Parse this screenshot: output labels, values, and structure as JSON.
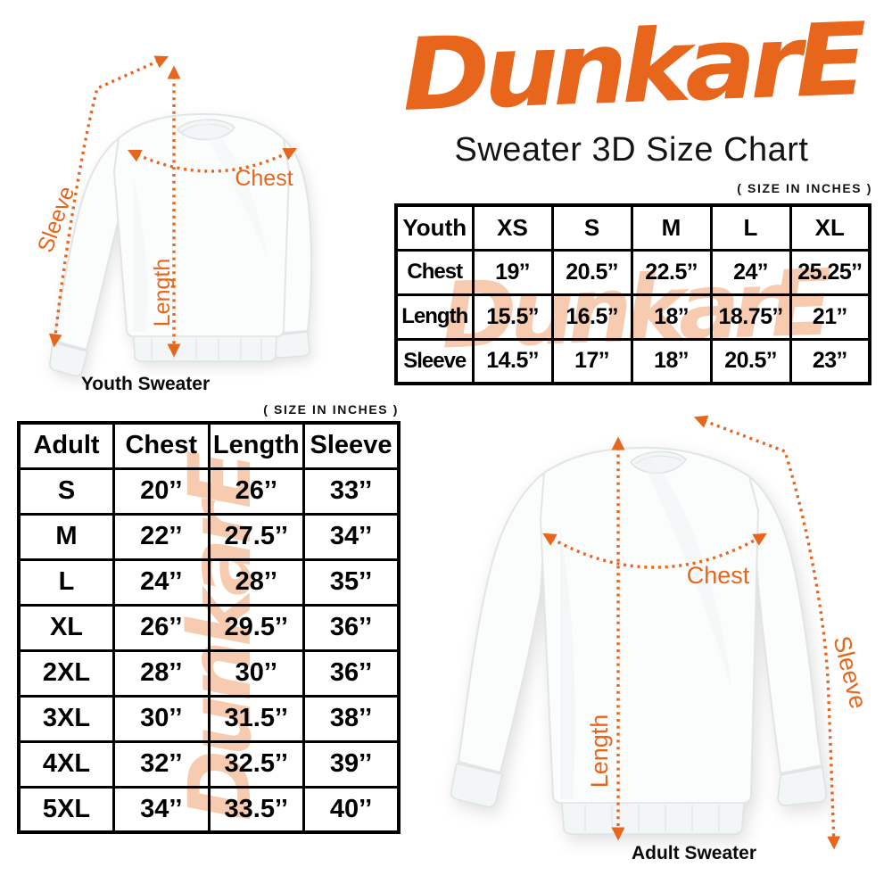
{
  "brand": {
    "logo_text": "DunkarE",
    "logo_color": "#E8661C"
  },
  "title": "Sweater 3D Size Chart",
  "notes": {
    "size_in_inches": "( SIZE IN INCHES )"
  },
  "colors": {
    "accent_orange": "#E8661C",
    "watermark_peach": "#F6CBB0",
    "text_black": "#000000",
    "background": "#FFFFFF"
  },
  "youth_diagram": {
    "caption": "Youth Sweater",
    "chest_label": "Chest",
    "length_label": "Length",
    "sleeve_label": "Sleeve"
  },
  "adult_diagram": {
    "caption": "Adult Sweater",
    "chest_label": "Chest",
    "length_label": "Length",
    "sleeve_label": "Sleeve"
  },
  "youth_table": {
    "columns": [
      "Youth",
      "XS",
      "S",
      "M",
      "L",
      "XL"
    ],
    "rows": [
      [
        "Chest",
        "19’’",
        "20.5’’",
        "22.5’’",
        "24’’",
        "25.25’’"
      ],
      [
        "Length",
        "15.5’’",
        "16.5’’",
        "18’’",
        "18.75’’",
        "21’’"
      ],
      [
        "Sleeve",
        "14.5’’",
        "17’’",
        "18’’",
        "20.5’’",
        "23’’"
      ]
    ]
  },
  "adult_table": {
    "columns": [
      "Adult",
      "Chest",
      "Length",
      "Sleeve"
    ],
    "rows": [
      [
        "S",
        "20’’",
        "26’’",
        "33’’"
      ],
      [
        "M",
        "22’’",
        "27.5’’",
        "34’’"
      ],
      [
        "L",
        "24’’",
        "28’’",
        "35’’"
      ],
      [
        "XL",
        "26’’",
        "29.5’’",
        "36’’"
      ],
      [
        "2XL",
        "28’’",
        "30’’",
        "36’’"
      ],
      [
        "3XL",
        "30’’",
        "31.5’’",
        "38’’"
      ],
      [
        "4XL",
        "32’’",
        "32.5’’",
        "39’’"
      ],
      [
        "5XL",
        "34’’",
        "33.5’’",
        "40’’"
      ]
    ]
  },
  "chart_data": [
    {
      "type": "table",
      "title": "Youth Sweater 3D Size Chart",
      "units": "inches",
      "columns": [
        "Youth",
        "XS",
        "S",
        "M",
        "L",
        "XL"
      ],
      "rows": [
        [
          "Chest",
          19,
          20.5,
          22.5,
          24,
          25.25
        ],
        [
          "Length",
          15.5,
          16.5,
          18,
          18.75,
          21
        ],
        [
          "Sleeve",
          14.5,
          17,
          18,
          20.5,
          23
        ]
      ]
    },
    {
      "type": "table",
      "title": "Adult Sweater 3D Size Chart",
      "units": "inches",
      "columns": [
        "Adult",
        "Chest",
        "Length",
        "Sleeve"
      ],
      "rows": [
        [
          "S",
          20,
          26,
          33
        ],
        [
          "M",
          22,
          27.5,
          34
        ],
        [
          "L",
          24,
          28,
          35
        ],
        [
          "XL",
          26,
          29.5,
          36
        ],
        [
          "2XL",
          28,
          30,
          36
        ],
        [
          "3XL",
          30,
          31.5,
          38
        ],
        [
          "4XL",
          32,
          32.5,
          39
        ],
        [
          "5XL",
          34,
          33.5,
          40
        ]
      ]
    }
  ]
}
